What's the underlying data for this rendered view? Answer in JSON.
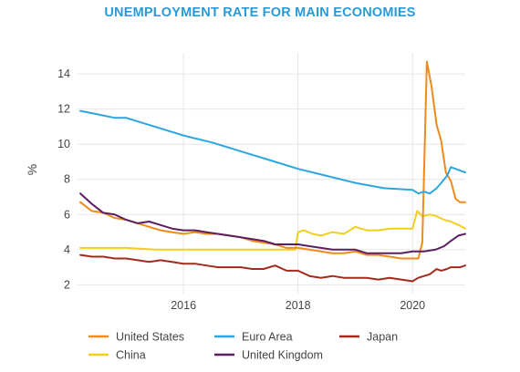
{
  "chart_data": {
    "type": "line",
    "title": "UNEMPLOYMENT RATE FOR MAIN ECONOMIES",
    "ylabel": "%",
    "xlabel": "",
    "xlim": [
      2014.15,
      2020.92
    ],
    "ylim": [
      1.5,
      15.2
    ],
    "x_ticks": [
      2016,
      2018,
      2020
    ],
    "x_tick_labels": [
      "2016",
      "2018",
      "2020"
    ],
    "y_ticks": [
      2,
      4,
      6,
      8,
      10,
      12,
      14
    ],
    "y_tick_labels": [
      "2",
      "4",
      "6",
      "8",
      "10",
      "12",
      "14"
    ],
    "grid": true,
    "legend_position": "bottom",
    "series": [
      {
        "name": "United States",
        "color": "#f08a1c",
        "x": [
          2014.2,
          2014.4,
          2014.6,
          2014.8,
          2015.0,
          2015.2,
          2015.4,
          2015.6,
          2015.8,
          2016.0,
          2016.2,
          2016.4,
          2016.6,
          2016.8,
          2017.0,
          2017.2,
          2017.4,
          2017.6,
          2017.8,
          2018.0,
          2018.2,
          2018.4,
          2018.6,
          2018.8,
          2019.0,
          2019.2,
          2019.4,
          2019.6,
          2019.8,
          2020.0,
          2020.1,
          2020.17,
          2020.25,
          2020.33,
          2020.42,
          2020.5,
          2020.58,
          2020.67,
          2020.75,
          2020.83,
          2020.92
        ],
        "values": [
          6.7,
          6.2,
          6.1,
          5.8,
          5.7,
          5.5,
          5.3,
          5.1,
          5.0,
          4.9,
          5.0,
          4.9,
          4.9,
          4.8,
          4.7,
          4.5,
          4.4,
          4.3,
          4.1,
          4.1,
          4.0,
          3.9,
          3.8,
          3.8,
          3.9,
          3.7,
          3.7,
          3.6,
          3.5,
          3.5,
          3.5,
          4.4,
          14.7,
          13.3,
          11.1,
          10.2,
          8.4,
          7.9,
          6.9,
          6.7,
          6.7
        ]
      },
      {
        "name": "Euro Area",
        "color": "#2ca6e0",
        "x": [
          2014.2,
          2014.5,
          2014.8,
          2015.0,
          2015.5,
          2016.0,
          2016.5,
          2017.0,
          2017.5,
          2018.0,
          2018.5,
          2019.0,
          2019.5,
          2020.0,
          2020.1,
          2020.2,
          2020.3,
          2020.42,
          2020.5,
          2020.6,
          2020.67,
          2020.75,
          2020.83,
          2020.92
        ],
        "values": [
          11.9,
          11.7,
          11.5,
          11.5,
          11.0,
          10.5,
          10.1,
          9.6,
          9.1,
          8.6,
          8.2,
          7.8,
          7.5,
          7.4,
          7.2,
          7.3,
          7.2,
          7.5,
          7.8,
          8.2,
          8.7,
          8.6,
          8.5,
          8.4
        ]
      },
      {
        "name": "Japan",
        "color": "#a52a1e",
        "x": [
          2014.2,
          2014.4,
          2014.6,
          2014.8,
          2015.0,
          2015.2,
          2015.4,
          2015.6,
          2015.8,
          2016.0,
          2016.2,
          2016.4,
          2016.6,
          2016.8,
          2017.0,
          2017.2,
          2017.4,
          2017.6,
          2017.8,
          2018.0,
          2018.2,
          2018.4,
          2018.6,
          2018.8,
          2019.0,
          2019.2,
          2019.4,
          2019.6,
          2019.8,
          2020.0,
          2020.1,
          2020.2,
          2020.3,
          2020.42,
          2020.5,
          2020.6,
          2020.67,
          2020.75,
          2020.83,
          2020.92
        ],
        "values": [
          3.7,
          3.6,
          3.6,
          3.5,
          3.5,
          3.4,
          3.3,
          3.4,
          3.3,
          3.2,
          3.2,
          3.1,
          3.0,
          3.0,
          3.0,
          2.9,
          2.9,
          3.1,
          2.8,
          2.8,
          2.5,
          2.4,
          2.5,
          2.4,
          2.4,
          2.4,
          2.3,
          2.4,
          2.3,
          2.2,
          2.4,
          2.5,
          2.6,
          2.9,
          2.8,
          2.9,
          3.0,
          3.0,
          3.0,
          3.1
        ]
      },
      {
        "name": "China",
        "color": "#f2cf1e",
        "x": [
          2014.2,
          2015.0,
          2015.5,
          2016.0,
          2016.5,
          2017.0,
          2017.5,
          2017.95,
          2018.0,
          2018.1,
          2018.25,
          2018.4,
          2018.6,
          2018.8,
          2019.0,
          2019.2,
          2019.4,
          2019.6,
          2019.8,
          2020.0,
          2020.08,
          2020.17,
          2020.3,
          2020.42,
          2020.55,
          2020.67,
          2020.8,
          2020.92
        ],
        "values": [
          4.1,
          4.1,
          4.0,
          4.0,
          4.0,
          4.0,
          4.0,
          4.0,
          5.0,
          5.1,
          4.9,
          4.8,
          5.0,
          4.9,
          5.3,
          5.1,
          5.1,
          5.2,
          5.2,
          5.2,
          6.2,
          5.9,
          6.0,
          5.9,
          5.7,
          5.6,
          5.4,
          5.2
        ]
      },
      {
        "name": "United Kingdom",
        "color": "#5b1f61",
        "x": [
          2014.2,
          2014.4,
          2014.6,
          2014.8,
          2015.0,
          2015.2,
          2015.4,
          2015.6,
          2015.8,
          2016.0,
          2016.2,
          2016.4,
          2016.6,
          2016.8,
          2017.0,
          2017.2,
          2017.4,
          2017.6,
          2017.8,
          2018.0,
          2018.2,
          2018.4,
          2018.6,
          2018.8,
          2019.0,
          2019.2,
          2019.4,
          2019.6,
          2019.8,
          2020.0,
          2020.2,
          2020.4,
          2020.55,
          2020.67,
          2020.8,
          2020.92
        ],
        "values": [
          7.2,
          6.6,
          6.1,
          6.0,
          5.7,
          5.5,
          5.6,
          5.4,
          5.2,
          5.1,
          5.1,
          5.0,
          4.9,
          4.8,
          4.7,
          4.6,
          4.5,
          4.3,
          4.3,
          4.3,
          4.2,
          4.1,
          4.0,
          4.0,
          4.0,
          3.8,
          3.8,
          3.8,
          3.8,
          3.9,
          3.9,
          4.0,
          4.2,
          4.5,
          4.8,
          4.9
        ]
      }
    ]
  }
}
